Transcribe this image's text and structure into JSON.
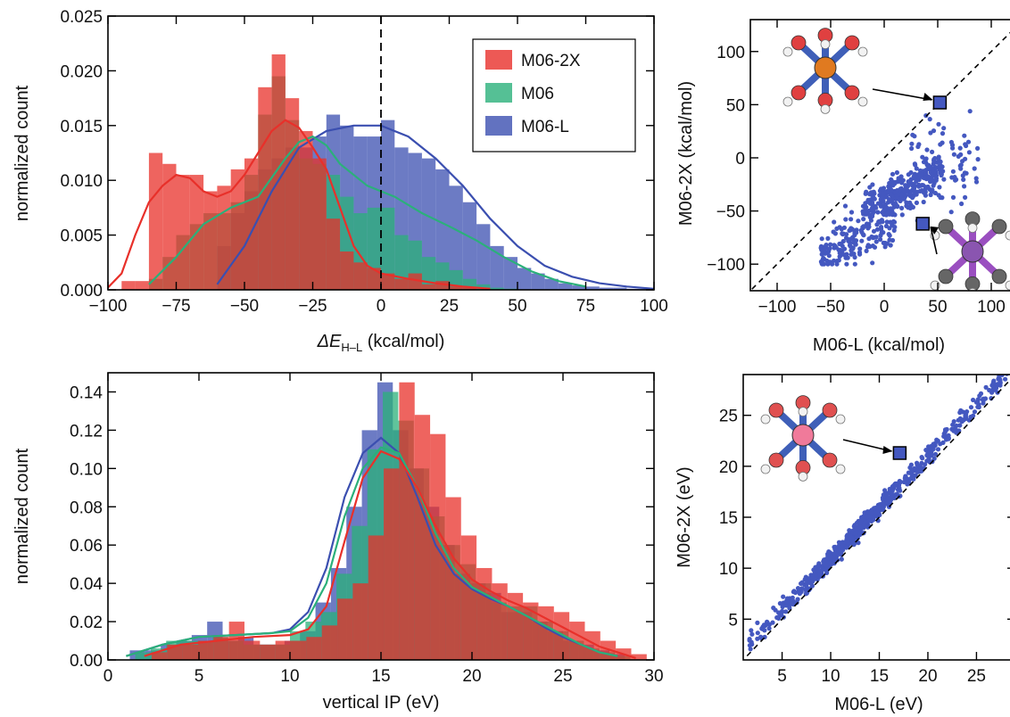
{
  "colors": {
    "m062x": "#e8302a",
    "m06": "#2bb07a",
    "m06l": "#3b4fb0",
    "scatter": "#4458c0",
    "frame": "#000000"
  },
  "chart_data": [
    {
      "id": "hist-top",
      "type": "histogram",
      "xlabel_main": "ΔE",
      "xlabel_sub": "H–L",
      "xlabel_unit": " (kcal/mol)",
      "ylabel": "normalized count",
      "xlim": [
        -100,
        100
      ],
      "ylim": [
        0,
        0.025
      ],
      "xticks": [
        -100,
        -75,
        -50,
        -25,
        0,
        25,
        50,
        75,
        100
      ],
      "xticklabels": [
        "−100",
        "−75",
        "−50",
        "−25",
        "0",
        "25",
        "50",
        "75",
        "100"
      ],
      "yticks": [
        0,
        0.005,
        0.01,
        0.015,
        0.02,
        0.025
      ],
      "yticklabels": [
        "0.000",
        "0.005",
        "0.010",
        "0.015",
        "0.020",
        "0.025"
      ],
      "vline_x": 0,
      "legend": {
        "placement": "top-right",
        "entries": [
          "M06-2X",
          "M06",
          "M06-L"
        ]
      },
      "series": [
        {
          "name": "M06-L",
          "color_key": "m06l",
          "bin_start": -60,
          "bin_width": 5,
          "values": [
            0.004,
            0.007,
            0.009,
            0.011,
            0.012,
            0.013,
            0.013,
            0.014,
            0.016,
            0.015,
            0.014,
            0.014,
            0.0155,
            0.013,
            0.0125,
            0.012,
            0.011,
            0.0095,
            0.008,
            0.006,
            0.004,
            0.003,
            0.002,
            0.0015,
            0.001,
            0.0006,
            0.0004,
            0.0003,
            0.0002,
            0.0002,
            0.0001,
            0.0001
          ],
          "kde_x": [
            -60,
            -50,
            -40,
            -30,
            -20,
            -10,
            0,
            10,
            20,
            30,
            40,
            50,
            60,
            70,
            80,
            90,
            100
          ],
          "kde_y": [
            0.0005,
            0.004,
            0.009,
            0.013,
            0.0145,
            0.015,
            0.015,
            0.014,
            0.012,
            0.0095,
            0.0065,
            0.004,
            0.0022,
            0.0012,
            0.0006,
            0.0003,
            0.0001
          ]
        },
        {
          "name": "M06",
          "color_key": "m06",
          "bin_start": -85,
          "bin_width": 5,
          "values": [
            0.001,
            0.003,
            0.005,
            0.006,
            0.007,
            0.007,
            0.008,
            0.0105,
            0.016,
            0.0195,
            0.0155,
            0.012,
            0.0115,
            0.0105,
            0.0085,
            0.007,
            0.0075,
            0.0075,
            0.005,
            0.0045,
            0.003,
            0.0025,
            0.0018,
            0.001,
            0.0005,
            0.0002,
            0.0001
          ],
          "kde_x": [
            -85,
            -75,
            -65,
            -55,
            -45,
            -35,
            -30,
            -25,
            -20,
            -15,
            -5,
            5,
            15,
            25,
            35,
            45,
            55,
            65,
            75
          ],
          "kde_y": [
            0.0005,
            0.003,
            0.006,
            0.0075,
            0.0085,
            0.012,
            0.0135,
            0.014,
            0.0132,
            0.0115,
            0.0095,
            0.0085,
            0.007,
            0.0058,
            0.0045,
            0.003,
            0.0017,
            0.0008,
            0.0003
          ]
        },
        {
          "name": "M06-2X",
          "color_key": "m062x",
          "bin_start": -95,
          "bin_width": 5,
          "values": [
            0.0008,
            0.0008,
            0.0125,
            0.0115,
            0.0105,
            0.0105,
            0.009,
            0.0095,
            0.011,
            0.012,
            0.0185,
            0.0215,
            0.0175,
            0.0145,
            0.012,
            0.0065,
            0.0035,
            0.0025,
            0.002,
            0.0015,
            0.001,
            0.0015,
            0.0005,
            0.0008,
            0.0003,
            0.0002
          ],
          "kde_x": [
            -100,
            -95,
            -90,
            -85,
            -80,
            -75,
            -70,
            -65,
            -60,
            -55,
            -50,
            -45,
            -40,
            -35,
            -30,
            -25,
            -20,
            -15,
            -10,
            -5,
            0,
            10,
            20,
            30,
            40
          ],
          "kde_y": [
            0.0002,
            0.0015,
            0.005,
            0.008,
            0.0095,
            0.0105,
            0.0102,
            0.009,
            0.0085,
            0.009,
            0.0105,
            0.0125,
            0.0145,
            0.0155,
            0.0148,
            0.013,
            0.011,
            0.0075,
            0.004,
            0.0022,
            0.0015,
            0.001,
            0.0006,
            0.0003,
            0.0001
          ]
        }
      ]
    },
    {
      "id": "scatter-top",
      "type": "scatter",
      "xlabel": "M06-L (kcal/mol)",
      "ylabel": "M06-2X (kcal/mol)",
      "xlim": [
        -125,
        125
      ],
      "ylim": [
        -125,
        130
      ],
      "xticks": [
        -100,
        -50,
        0,
        50,
        100
      ],
      "xticklabels": [
        "−100",
        "−50",
        "0",
        "50",
        "100"
      ],
      "yticks": [
        -100,
        -50,
        0,
        50,
        100
      ],
      "yticklabels": [
        "−100",
        "−50",
        "0",
        "50",
        "100"
      ],
      "diagonal": true,
      "highlighted": [
        [
          52,
          52
        ],
        [
          36,
          -62
        ]
      ],
      "cluster": {
        "x_range": [
          -60,
          90
        ],
        "y_range": [
          -100,
          55
        ],
        "count": 550
      }
    },
    {
      "id": "hist-bottom",
      "type": "histogram",
      "xlabel": "vertical IP (eV)",
      "ylabel": "normalized count",
      "xlim": [
        0,
        30
      ],
      "ylim": [
        0,
        0.15
      ],
      "xticks": [
        0,
        5,
        10,
        15,
        20,
        25,
        30
      ],
      "xticklabels": [
        "0",
        "5",
        "10",
        "15",
        "20",
        "25",
        "30"
      ],
      "yticks": [
        0,
        0.02,
        0.04,
        0.06,
        0.08,
        0.1,
        0.12,
        0.14
      ],
      "yticklabels": [
        "0.00",
        "0.02",
        "0.04",
        "0.06",
        "0.08",
        "0.10",
        "0.12",
        "0.14"
      ],
      "series": [
        {
          "name": "M06-L",
          "color_key": "m06l",
          "bin_start": 1.2,
          "bin_width": 0.85,
          "values": [
            0.005,
            0.005,
            0.008,
            0.01,
            0.013,
            0.02,
            0.01,
            0.012,
            0.008,
            0.008,
            0.01,
            0.015,
            0.03,
            0.048,
            0.08,
            0.12,
            0.145,
            0.12,
            0.1,
            0.08,
            0.06,
            0.045,
            0.04,
            0.035,
            0.025,
            0.025,
            0.02,
            0.015,
            0.01,
            0.008,
            0.005,
            0.003
          ],
          "kde_x": [
            1,
            3,
            5,
            7,
            9,
            10,
            11,
            12,
            13,
            14,
            15,
            16,
            17,
            18,
            19,
            20,
            21,
            22,
            23,
            24,
            25,
            26,
            27,
            28
          ],
          "kde_y": [
            0.002,
            0.008,
            0.012,
            0.013,
            0.014,
            0.016,
            0.025,
            0.048,
            0.085,
            0.108,
            0.116,
            0.108,
            0.085,
            0.06,
            0.045,
            0.037,
            0.032,
            0.028,
            0.023,
            0.017,
            0.012,
            0.008,
            0.004,
            0.002
          ]
        },
        {
          "name": "M06",
          "color_key": "m06",
          "bin_start": 1.5,
          "bin_width": 0.85,
          "values": [
            0.004,
            0.006,
            0.01,
            0.01,
            0.01,
            0.012,
            0.01,
            0.008,
            0.008,
            0.008,
            0.015,
            0.02,
            0.025,
            0.045,
            0.07,
            0.11,
            0.14,
            0.125,
            0.1,
            0.075,
            0.06,
            0.05,
            0.04,
            0.03,
            0.028,
            0.028,
            0.02,
            0.015,
            0.01,
            0.006,
            0.004,
            0.002
          ],
          "kde_x": [
            1,
            3,
            5,
            7,
            9,
            10,
            11,
            12,
            13,
            14,
            15,
            16,
            17,
            18,
            19,
            20,
            21,
            22,
            23,
            24,
            25,
            26,
            27,
            28
          ],
          "kde_y": [
            0.002,
            0.008,
            0.012,
            0.013,
            0.014,
            0.015,
            0.022,
            0.04,
            0.075,
            0.1,
            0.111,
            0.108,
            0.09,
            0.066,
            0.048,
            0.038,
            0.033,
            0.028,
            0.023,
            0.018,
            0.013,
            0.008,
            0.004,
            0.002
          ]
        },
        {
          "name": "M06-2X",
          "color_key": "m062x",
          "bin_start": 2.4,
          "bin_width": 0.85,
          "values": [
            0.004,
            0.008,
            0.008,
            0.01,
            0.012,
            0.02,
            0.01,
            0.008,
            0.01,
            0.01,
            0.012,
            0.018,
            0.032,
            0.04,
            0.065,
            0.1,
            0.145,
            0.128,
            0.118,
            0.085,
            0.065,
            0.048,
            0.04,
            0.035,
            0.03,
            0.028,
            0.025,
            0.02,
            0.015,
            0.01,
            0.006,
            0.003
          ],
          "kde_x": [
            2,
            4,
            6,
            8,
            10,
            11,
            12,
            13,
            14,
            15,
            16,
            17,
            18,
            19,
            20,
            21,
            22,
            23,
            24,
            25,
            26,
            27,
            28,
            29
          ],
          "kde_y": [
            0.002,
            0.008,
            0.01,
            0.012,
            0.013,
            0.016,
            0.028,
            0.062,
            0.095,
            0.109,
            0.105,
            0.09,
            0.07,
            0.053,
            0.042,
            0.036,
            0.031,
            0.027,
            0.022,
            0.017,
            0.012,
            0.007,
            0.004,
            0.001
          ]
        }
      ]
    },
    {
      "id": "scatter-bottom",
      "type": "scatter",
      "xlabel": "M06-L (eV)",
      "ylabel": "M06-2X (eV)",
      "xlim": [
        1,
        29
      ],
      "ylim": [
        1,
        29
      ],
      "xticks": [
        5,
        10,
        15,
        20,
        25
      ],
      "xticklabels": [
        "5",
        "10",
        "15",
        "20",
        "25"
      ],
      "yticks": [
        5,
        10,
        15,
        20,
        25
      ],
      "yticklabels": [
        "5",
        "10",
        "15",
        "20",
        "25"
      ],
      "diagonal": true,
      "highlighted": [
        [
          17.1,
          21.3
        ]
      ],
      "cluster": {
        "x_range": [
          1.5,
          28.5
        ],
        "offset_range": [
          0.3,
          1.6
        ],
        "count": 600
      }
    }
  ]
}
